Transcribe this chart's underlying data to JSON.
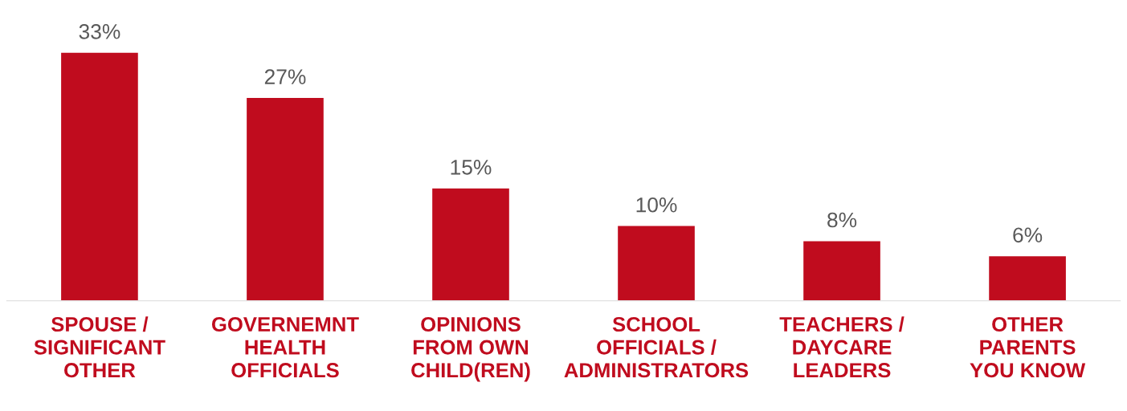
{
  "chart_data": {
    "type": "bar",
    "categories": [
      "SPOUSE /\nSIGNIFICANT\nOTHER",
      "GOVERNEMNT\nHEALTH\nOFFICIALS",
      "OPINIONS\nFROM OWN\nCHILD(REN)",
      "SCHOOL\nOFFICIALS /\nADMINISTRATORS",
      "TEACHERS /\nDAYCARE\nLEADERS",
      "OTHER\nPARENTS\nYOU KNOW"
    ],
    "values": [
      33,
      27,
      15,
      10,
      8,
      6
    ],
    "value_labels": [
      "33%",
      "27%",
      "15%",
      "10%",
      "8%",
      "6%"
    ],
    "color": "#c00c1e",
    "grid": false,
    "legend": false
  }
}
